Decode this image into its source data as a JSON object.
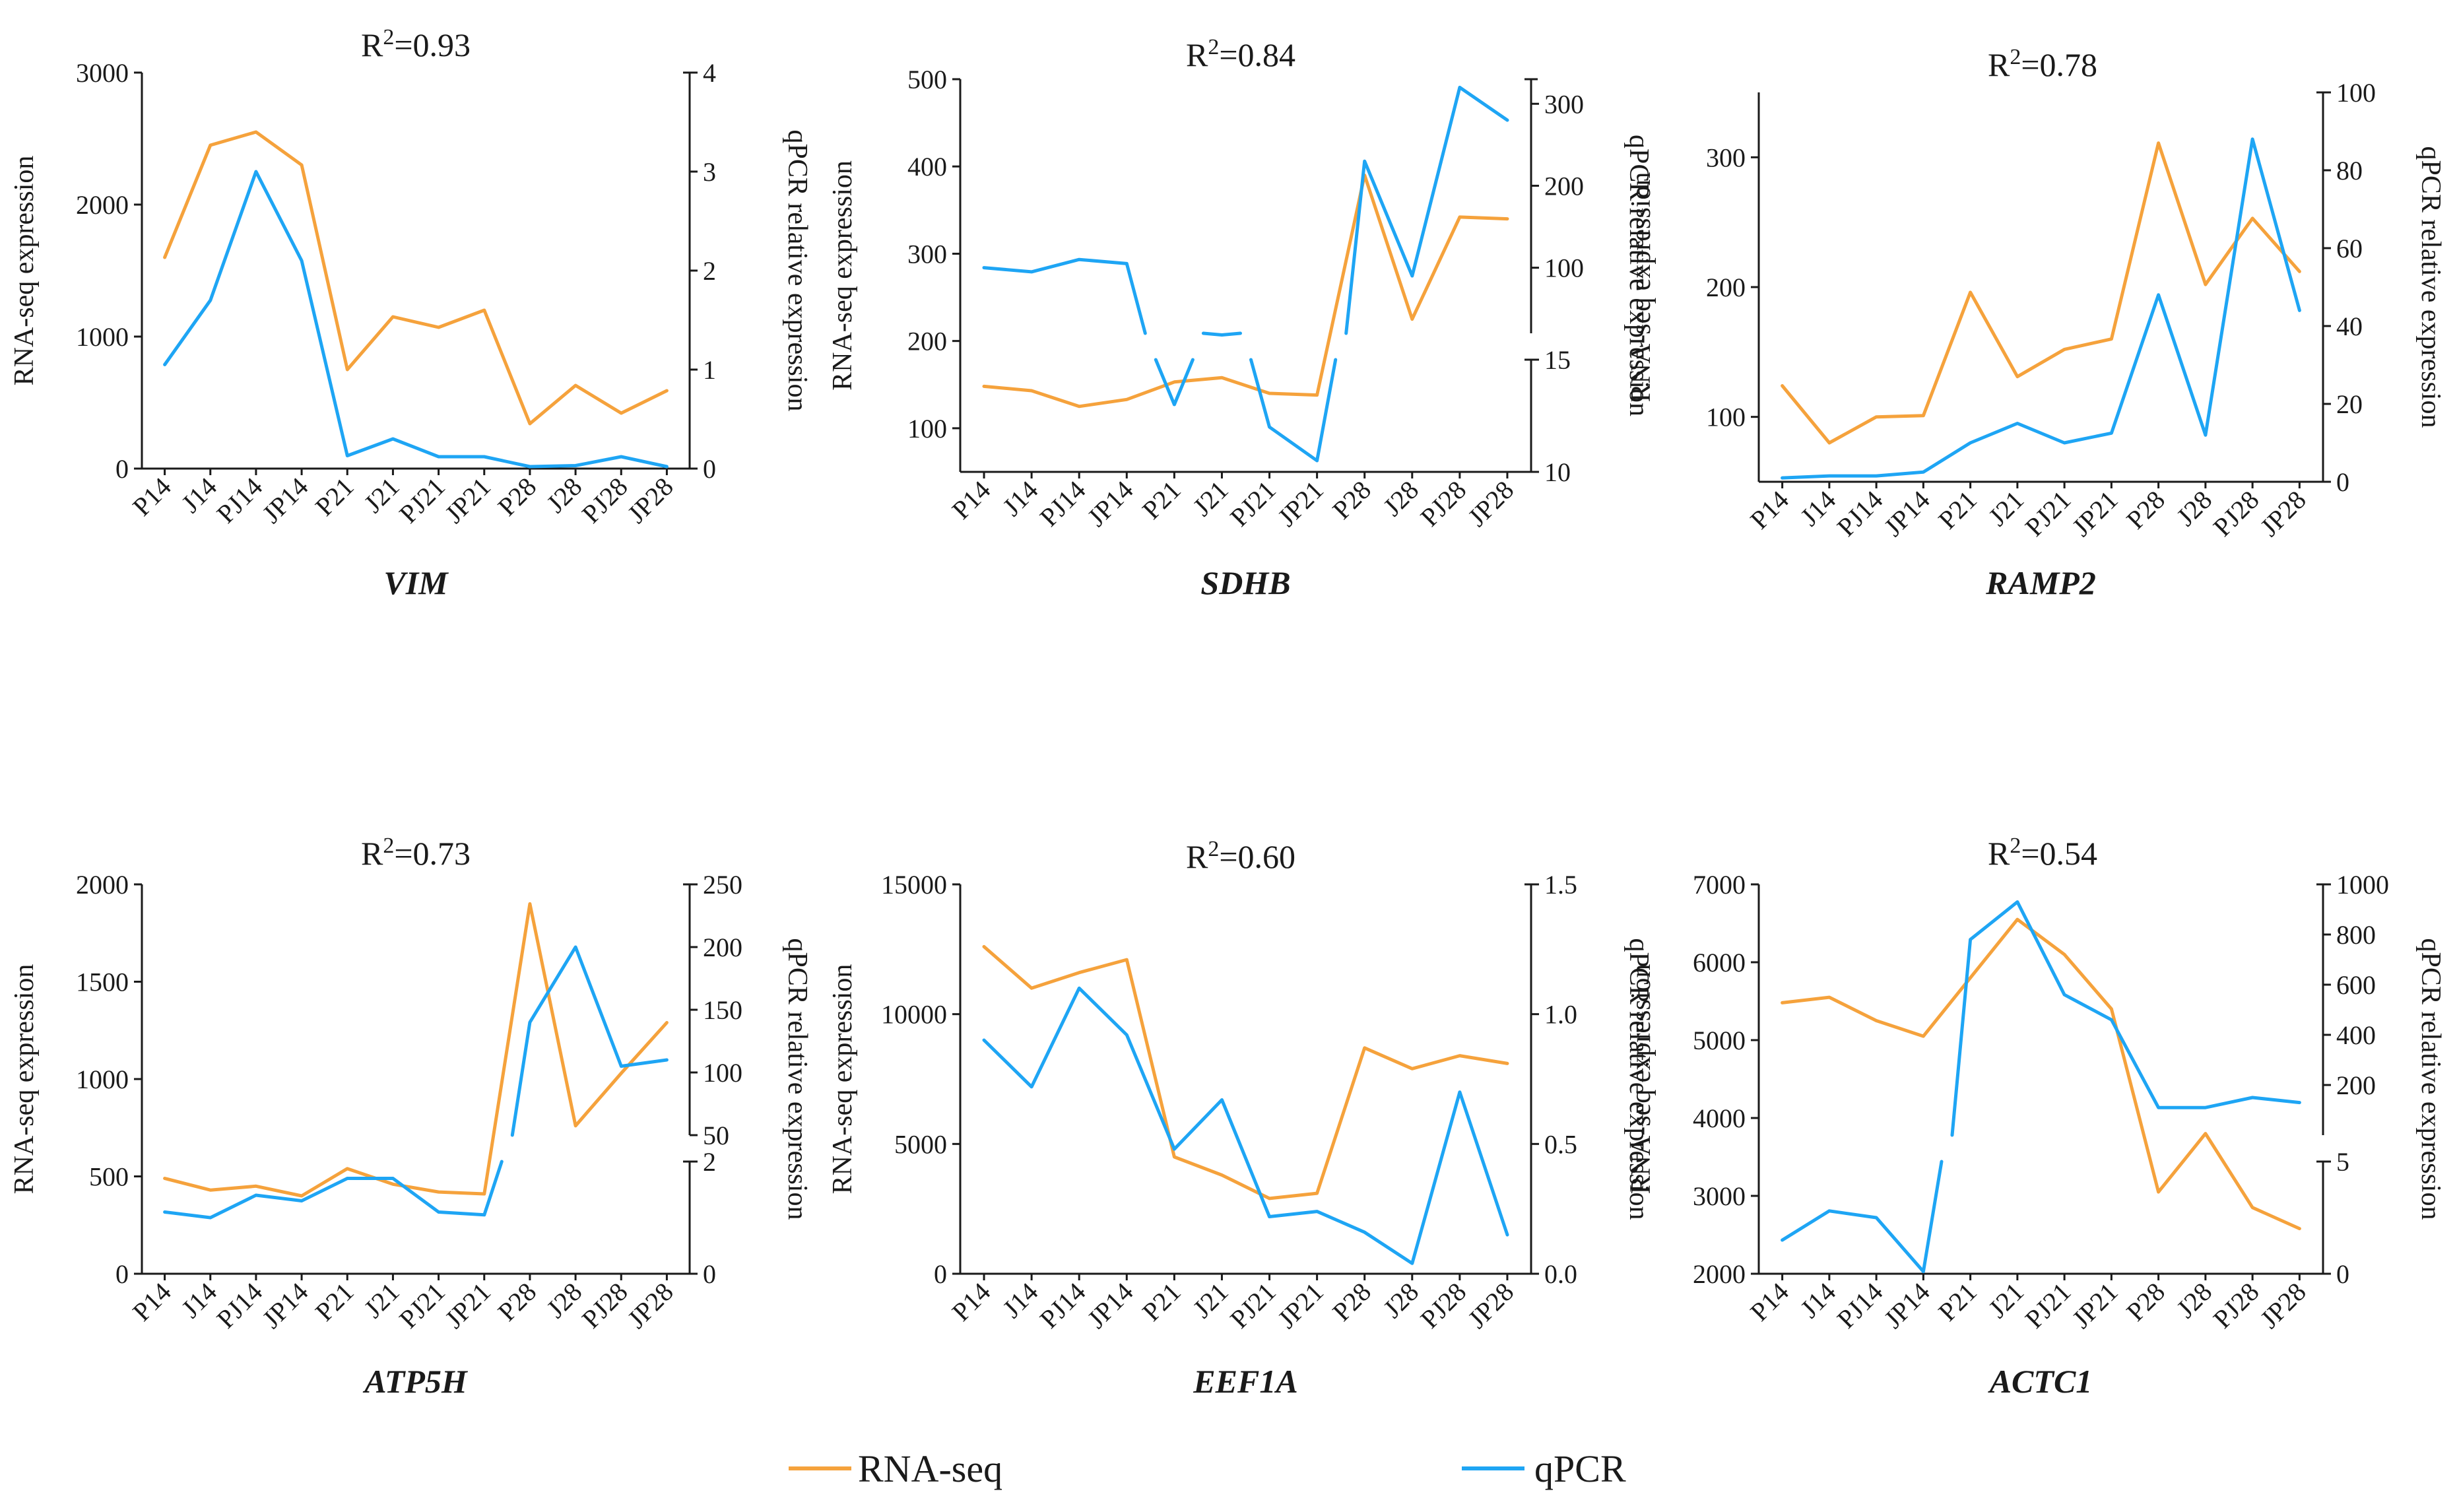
{
  "colors": {
    "rnaseq": "#F5A23C",
    "qpcr": "#1EA5F4"
  },
  "legend": {
    "rnaseq": "RNA-seq",
    "qpcr": "qPCR"
  },
  "chart_data": [
    {
      "type": "line",
      "title_prefix": "R",
      "title_sup": "2",
      "title_value": "=0.93",
      "gene": "VIM",
      "categories": [
        "P14",
        "J14",
        "PJ14",
        "JP14",
        "P21",
        "J21",
        "PJ21",
        "JP21",
        "P28",
        "J28",
        "PJ28",
        "JP28"
      ],
      "ylabel_left": "RNA-seq expression",
      "ylabel_right": "qPCR relative expression",
      "ylim_left": [
        0,
        3000
      ],
      "yticks_left": [
        "0",
        "1000",
        "2000",
        "3000"
      ],
      "right_segments": [
        {
          "range": [
            0,
            4
          ],
          "ticks": [
            "0",
            "1",
            "2",
            "3",
            "4"
          ]
        }
      ],
      "series": [
        {
          "name": "RNA-seq",
          "axis": "left",
          "values": [
            1600,
            2450,
            2550,
            2300,
            750,
            1150,
            1070,
            1200,
            340,
            630,
            420,
            590
          ]
        },
        {
          "name": "qPCR",
          "axis": "right",
          "values": [
            1.05,
            1.7,
            3.0,
            2.1,
            0.13,
            0.3,
            0.12,
            0.12,
            0.02,
            0.03,
            0.12,
            0.02
          ]
        }
      ]
    },
    {
      "type": "line",
      "title_prefix": "R",
      "title_sup": "2",
      "title_value": "=0.84",
      "gene": "SDHB",
      "categories": [
        "P14",
        "J14",
        "PJ14",
        "JP14",
        "P21",
        "J21",
        "PJ21",
        "JP21",
        "P28",
        "J28",
        "PJ28",
        "JP28"
      ],
      "ylabel_left": "RNA-seq expression",
      "ylabel_right": "qPCR relative expression",
      "ylim_left": [
        50,
        500
      ],
      "yticks_left": [
        "100",
        "200",
        "300",
        "400",
        "500"
      ],
      "right_segments": [
        {
          "range": [
            10,
            15
          ],
          "ticks": [
            "10",
            "15"
          ]
        },
        {
          "range": [
            20,
            330
          ],
          "ticks": [
            "100",
            "200",
            "300"
          ]
        }
      ],
      "series": [
        {
          "name": "RNA-seq",
          "axis": "left",
          "values": [
            148,
            143,
            125,
            133,
            153,
            158,
            140,
            138,
            390,
            225,
            342,
            340
          ]
        },
        {
          "name": "qPCR",
          "axis": "right",
          "values": [
            100,
            95,
            110,
            105,
            13,
            18,
            12,
            10.5,
            230,
            90,
            320,
            280
          ]
        }
      ]
    },
    {
      "type": "line",
      "title_prefix": "R",
      "title_sup": "2",
      "title_value": "=0.78",
      "gene": "RAMP2",
      "categories": [
        "P14",
        "J14",
        "PJ14",
        "JP14",
        "P21",
        "J21",
        "PJ21",
        "JP21",
        "P28",
        "J28",
        "PJ28",
        "JP28"
      ],
      "ylabel_left": "RNA-seq expression",
      "ylabel_right": "qPCR relative expression",
      "ylim_left": [
        50,
        350
      ],
      "yticks_left": [
        "100",
        "200",
        "300"
      ],
      "right_segments": [
        {
          "range": [
            0,
            100
          ],
          "ticks": [
            "0",
            "20",
            "40",
            "60",
            "80",
            "100"
          ]
        }
      ],
      "series": [
        {
          "name": "RNA-seq",
          "axis": "left",
          "values": [
            124,
            80,
            100,
            101,
            196,
            131,
            152,
            160,
            311,
            202,
            253,
            212
          ]
        },
        {
          "name": "qPCR",
          "axis": "right",
          "values": [
            1,
            1.5,
            1.5,
            2.5,
            10,
            15,
            10,
            12.5,
            48,
            12,
            88,
            44
          ]
        }
      ]
    },
    {
      "type": "line",
      "title_prefix": "R",
      "title_sup": "2",
      "title_value": "=0.73",
      "gene": "ATP5H",
      "categories": [
        "P14",
        "J14",
        "PJ14",
        "JP14",
        "P21",
        "J21",
        "PJ21",
        "JP21",
        "P28",
        "J28",
        "PJ28",
        "JP28"
      ],
      "ylabel_left": "RNA-seq expression",
      "ylabel_right": "qPCR relative expression",
      "ylim_left": [
        0,
        2000
      ],
      "yticks_left": [
        "0",
        "500",
        "1000",
        "1500",
        "2000"
      ],
      "right_segments": [
        {
          "range": [
            0,
            2
          ],
          "ticks": [
            "0",
            "2"
          ]
        },
        {
          "range": [
            50,
            250
          ],
          "ticks": [
            "50",
            "100",
            "150",
            "200",
            "250"
          ]
        }
      ],
      "series": [
        {
          "name": "RNA-seq",
          "axis": "left",
          "values": [
            490,
            430,
            450,
            400,
            540,
            460,
            420,
            410,
            1900,
            760,
            1030,
            1290
          ]
        },
        {
          "name": "qPCR",
          "axis": "right",
          "values": [
            1.1,
            1.0,
            1.4,
            1.3,
            1.7,
            1.7,
            1.1,
            1.05,
            140,
            200,
            105,
            110
          ]
        }
      ]
    },
    {
      "type": "line",
      "title_prefix": "R",
      "title_sup": "2",
      "title_value": "=0.60",
      "gene": "EEF1A",
      "categories": [
        "P14",
        "J14",
        "PJ14",
        "JP14",
        "P21",
        "J21",
        "PJ21",
        "JP21",
        "P28",
        "J28",
        "PJ28",
        "JP28"
      ],
      "ylabel_left": "RNA-seq expression",
      "ylabel_right": "qPCR relative expression",
      "ylim_left": [
        0,
        15000
      ],
      "yticks_left": [
        "0",
        "5000",
        "10000",
        "15000"
      ],
      "right_segments": [
        {
          "range": [
            0,
            1.5
          ],
          "ticks": [
            "0.0",
            "0.5",
            "1.0",
            "1.5"
          ]
        }
      ],
      "series": [
        {
          "name": "RNA-seq",
          "axis": "left",
          "values": [
            12600,
            11000,
            11600,
            12100,
            4500,
            3800,
            2900,
            3100,
            8700,
            7900,
            8400,
            8100
          ]
        },
        {
          "name": "qPCR",
          "axis": "right",
          "values": [
            0.9,
            0.72,
            1.1,
            0.92,
            0.48,
            0.67,
            0.22,
            0.24,
            0.16,
            0.04,
            0.7,
            0.15
          ]
        }
      ]
    },
    {
      "type": "line",
      "title_prefix": "R",
      "title_sup": "2",
      "title_value": "=0.54",
      "gene": "ACTC1",
      "categories": [
        "P14",
        "J14",
        "PJ14",
        "JP14",
        "P21",
        "J21",
        "PJ21",
        "JP21",
        "P28",
        "J28",
        "PJ28",
        "JP28"
      ],
      "ylabel_left": "RNA-seq expression",
      "ylabel_right": "qPCR relative expression",
      "ylim_left": [
        2000,
        7000
      ],
      "yticks_left": [
        "2000",
        "3000",
        "4000",
        "5000",
        "6000",
        "7000"
      ],
      "right_segments": [
        {
          "range": [
            0,
            5
          ],
          "ticks": [
            "0",
            "5"
          ]
        },
        {
          "range": [
            0,
            1000
          ],
          "ticks": [
            "200",
            "400",
            "600",
            "800",
            "1000"
          ]
        }
      ],
      "series": [
        {
          "name": "RNA-seq",
          "axis": "left",
          "values": [
            5480,
            5550,
            5250,
            5050,
            5800,
            6550,
            6100,
            5400,
            3050,
            3800,
            2850,
            2580
          ]
        },
        {
          "name": "qPCR",
          "axis": "right",
          "values": [
            1.5,
            2.8,
            2.5,
            0.1,
            780,
            930,
            560,
            460,
            110,
            110,
            150,
            130
          ]
        }
      ]
    }
  ]
}
